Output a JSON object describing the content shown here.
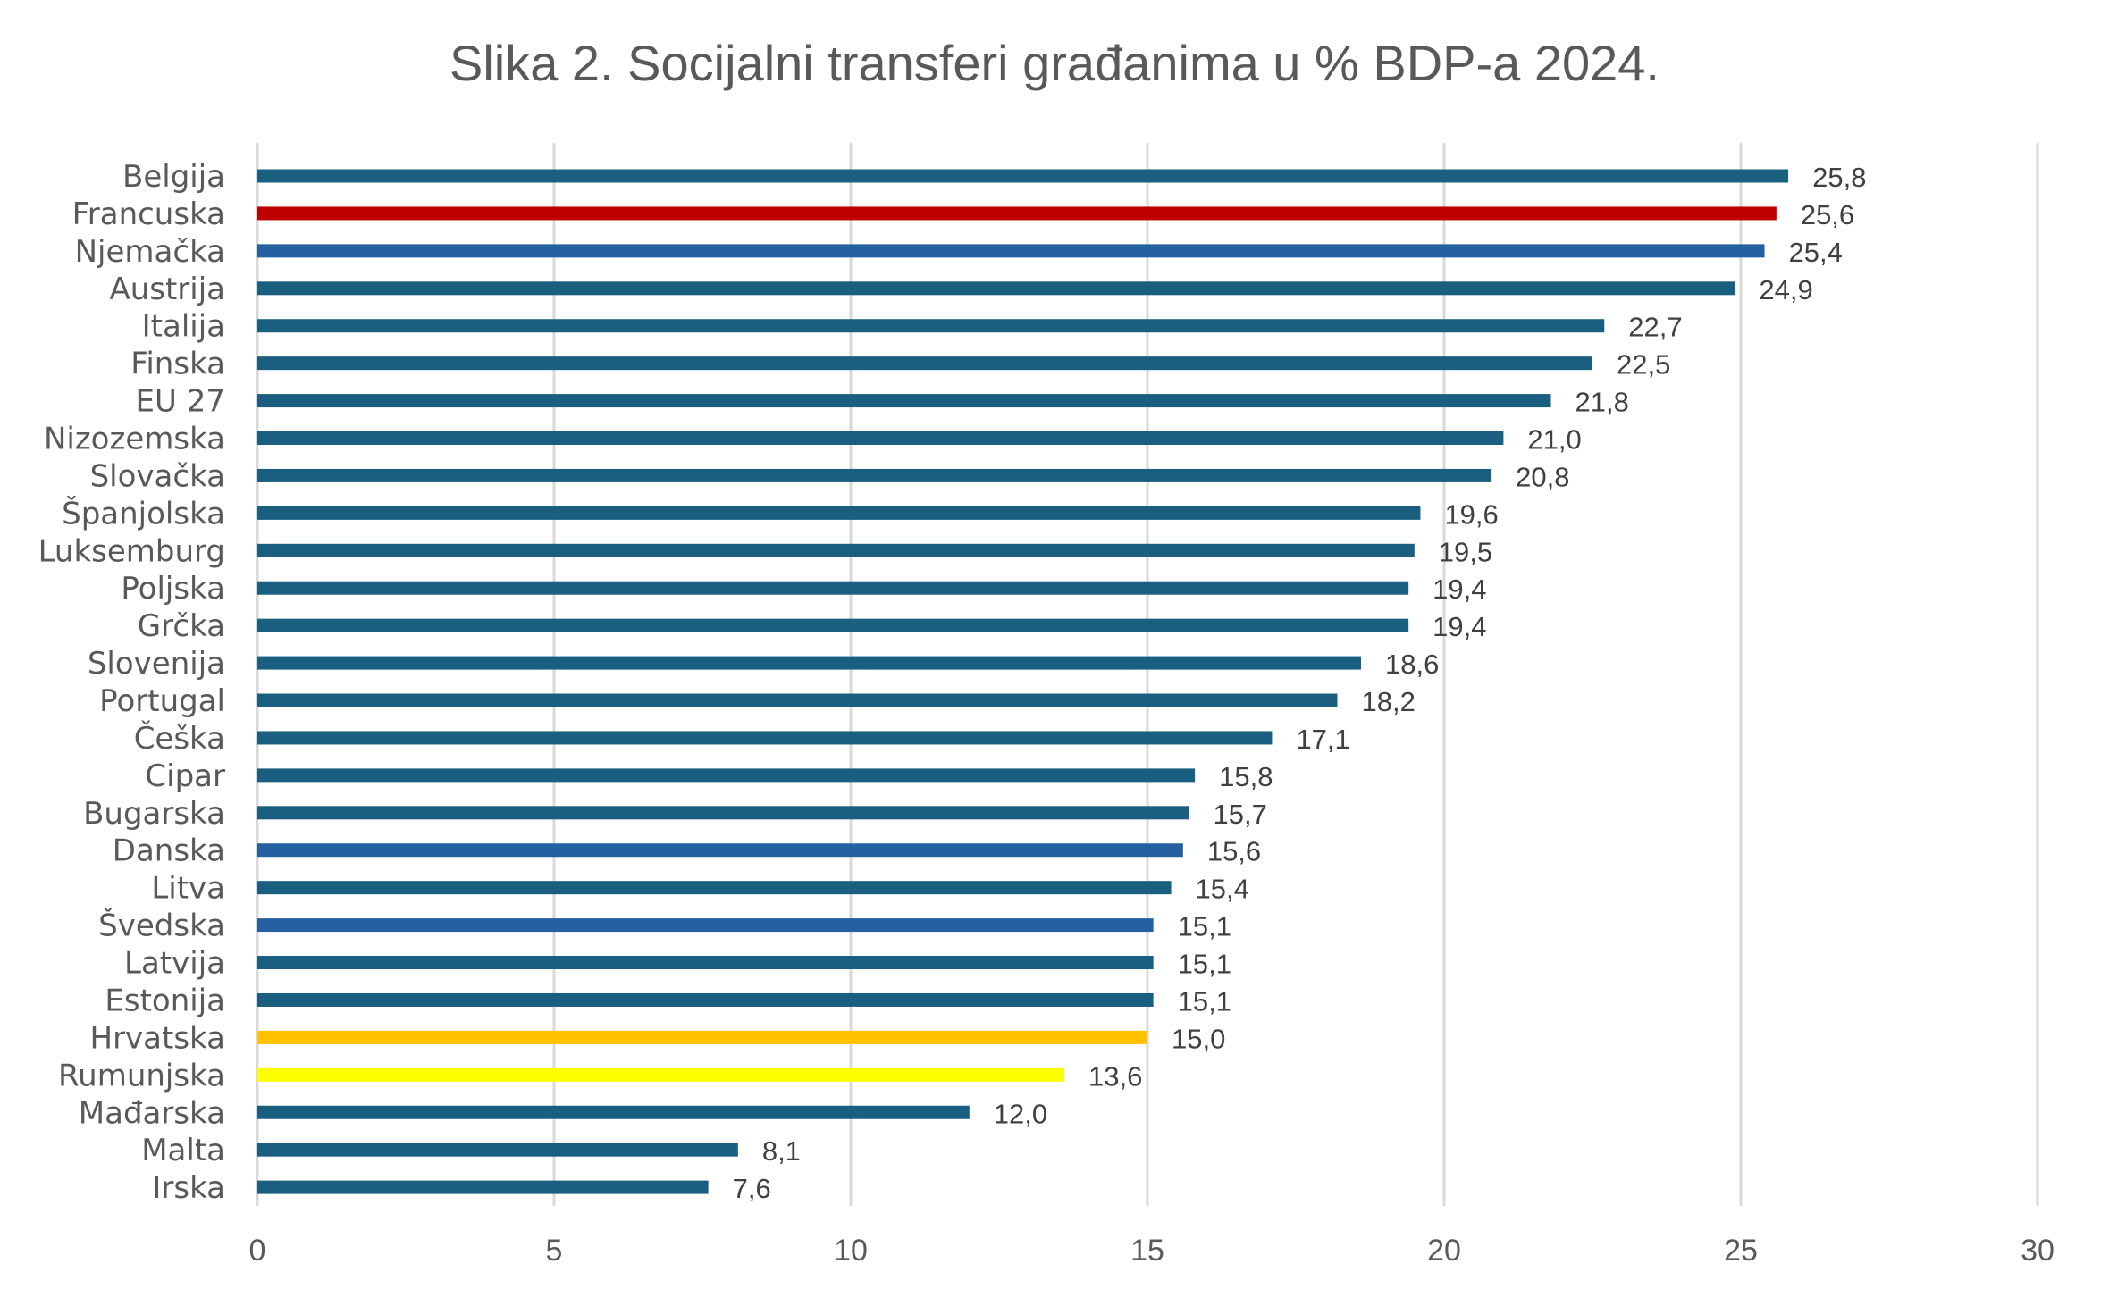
{
  "chart_data": {
    "type": "bar",
    "orientation": "horizontal",
    "title": "Slika 2. Socijalni transferi građanima u % BDP-a 2024.",
    "xlabel": "",
    "ylabel": "",
    "xlim": [
      0,
      30
    ],
    "xticks": [
      0,
      5,
      10,
      15,
      20,
      25,
      30
    ],
    "grid": true,
    "legend": "none",
    "decimal_separator": ",",
    "colors": {
      "default": "#1a5f80",
      "francuska": "#c00000",
      "highlight_blue": "#2560a0",
      "hrvatska": "#ffc000",
      "rumunjska": "#ffff00"
    },
    "categories": [
      "Belgija",
      "Francuska",
      "Njemačka",
      "Austrija",
      "Italija",
      "Finska",
      "EU 27",
      "Nizozemska",
      "Slovačka",
      "Španjolska",
      "Luksemburg",
      "Poljska",
      "Grčka",
      "Slovenija",
      "Portugal",
      "Češka",
      "Cipar",
      "Bugarska",
      "Danska",
      "Litva",
      "Švedska",
      "Latvija",
      "Estonija",
      "Hrvatska",
      "Rumunjska",
      "Mađarska",
      "Malta",
      "Irska"
    ],
    "values": [
      25.8,
      25.6,
      25.4,
      24.9,
      22.7,
      22.5,
      21.8,
      21.0,
      20.8,
      19.6,
      19.5,
      19.4,
      19.4,
      18.6,
      18.2,
      17.1,
      15.8,
      15.7,
      15.6,
      15.4,
      15.1,
      15.1,
      15.1,
      15.0,
      13.6,
      12.0,
      8.1,
      7.6
    ],
    "value_labels": [
      "25,8",
      "25,6",
      "25,4",
      "24,9",
      "22,7",
      "22,5",
      "21,8",
      "21,0",
      "20,8",
      "19,6",
      "19,5",
      "19,4",
      "19,4",
      "18,6",
      "18,2",
      "17,1",
      "15,8",
      "15,7",
      "15,6",
      "15,4",
      "15,1",
      "15,1",
      "15,1",
      "15,0",
      "13,6",
      "12,0",
      "8,1",
      "7,6"
    ],
    "bar_colors": [
      "#1a5f80",
      "#c00000",
      "#2560a0",
      "#1a5f80",
      "#1a5f80",
      "#1a5f80",
      "#1a5f80",
      "#1a5f80",
      "#1a5f80",
      "#1a5f80",
      "#1a5f80",
      "#1a5f80",
      "#1a5f80",
      "#1a5f80",
      "#1a5f80",
      "#1a5f80",
      "#1a5f80",
      "#1a5f80",
      "#2560a0",
      "#1a5f80",
      "#2560a0",
      "#1a5f80",
      "#1a5f80",
      "#ffc000",
      "#ffff00",
      "#1a5f80",
      "#1a5f80",
      "#1a5f80"
    ]
  }
}
